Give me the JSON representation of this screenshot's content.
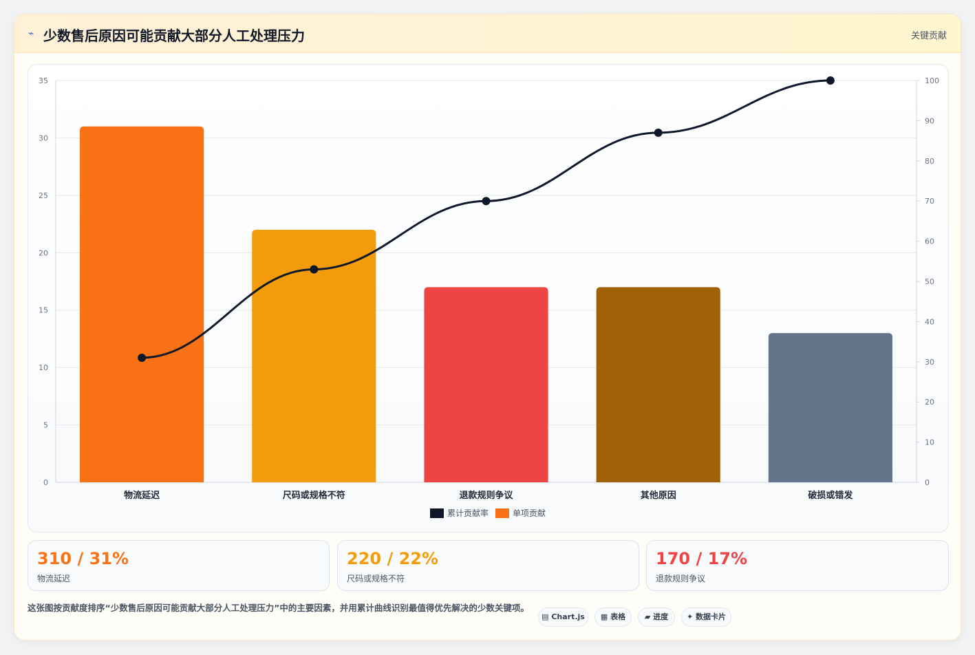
{
  "header": {
    "icon": "lightning-icon",
    "title": "少数售后原因可能贡献大部分人工处理压力",
    "tag": "关键贡献"
  },
  "chart_data": {
    "type": "bar",
    "categories": [
      "物流延迟",
      "尺码或规格不符",
      "退款规则争议",
      "其他原因",
      "破损或错发"
    ],
    "series": [
      {
        "name": "单项贡献",
        "type": "bar",
        "axis": "left",
        "values": [
          31,
          22,
          17,
          17,
          13
        ],
        "colors": [
          "#f97316",
          "#f39c0b",
          "#ef4444",
          "#a16207",
          "#64748b"
        ]
      },
      {
        "name": "累计贡献率",
        "type": "line",
        "axis": "right",
        "values": [
          31,
          53,
          70,
          87,
          100
        ],
        "color": "#0f172a"
      }
    ],
    "y_left": {
      "range": [
        0,
        35
      ],
      "ticks": [
        0,
        5,
        10,
        15,
        20,
        25,
        30,
        35
      ]
    },
    "y_right": {
      "range": [
        0,
        100
      ],
      "ticks": [
        0,
        10,
        20,
        30,
        40,
        50,
        60,
        70,
        80,
        90,
        100
      ]
    },
    "legend": [
      "累计贡献率",
      "单项贡献"
    ],
    "legend_position": "bottom",
    "grid": true
  },
  "kpis": [
    {
      "value": "310 / 31%",
      "label": "物流延迟",
      "color": "#f97316"
    },
    {
      "value": "220 / 22%",
      "label": "尺码或规格不符",
      "color": "#f39c0b"
    },
    {
      "value": "170 / 17%",
      "label": "退款规则争议",
      "color": "#ef4444"
    }
  ],
  "footer": {
    "description": "这张图按贡献度排序“少数售后原因可能贡献大部分人工处理压力”中的主要因素，并用累计曲线识别最值得优先解决的少数关键项。",
    "chips": [
      "▤ Chart.js",
      "▦ 表格",
      "▰ 进度",
      "✦ 数据卡片"
    ]
  }
}
